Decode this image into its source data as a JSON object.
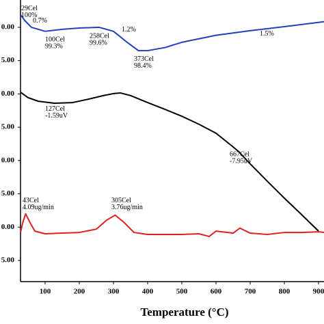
{
  "chart_data": {
    "type": "line",
    "x_label": "Temperature (°C)",
    "xlim": [
      28,
      916
    ],
    "xticks": [
      100,
      200,
      300,
      400,
      500,
      600,
      700,
      800,
      900
    ],
    "ylim": [
      -0.64,
      7.8
    ],
    "yticks": [
      {
        "value": 0,
        "label": "5.00"
      },
      {
        "value": 1,
        "label": "0.00"
      },
      {
        "value": 2,
        "label": "5.00"
      },
      {
        "value": 3,
        "label": "0.00"
      },
      {
        "value": 4,
        "label": "5.00"
      },
      {
        "value": 5,
        "label": "0.00"
      },
      {
        "value": 6,
        "label": "5.00"
      },
      {
        "value": 7,
        "label": "0.00"
      }
    ],
    "series": [
      {
        "color": "#1f3fbf",
        "x": [
          29,
          40,
          60,
          100,
          150,
          200,
          258,
          300,
          340,
          373,
          400,
          450,
          500,
          600,
          700,
          800,
          916
        ],
        "values": [
          7.37,
          7.21,
          7.0,
          6.88,
          6.94,
          6.98,
          7.0,
          6.88,
          6.55,
          6.3,
          6.3,
          6.39,
          6.55,
          6.76,
          6.9,
          7.02,
          7.17
        ]
      },
      {
        "color": "#000000",
        "x": [
          28,
          50,
          80,
          127,
          180,
          230,
          270,
          300,
          320,
          350,
          400,
          450,
          500,
          550,
          600,
          650,
          667,
          700,
          750,
          800,
          850,
          900
        ],
        "values": [
          5.05,
          4.89,
          4.78,
          4.72,
          4.74,
          4.85,
          4.95,
          5.01,
          5.03,
          4.95,
          4.74,
          4.54,
          4.33,
          4.09,
          3.82,
          3.41,
          3.26,
          2.9,
          2.38,
          1.87,
          1.38,
          0.88
        ]
      },
      {
        "color": "#e02020",
        "x": [
          28,
          35,
          43,
          55,
          70,
          100,
          150,
          200,
          250,
          280,
          305,
          330,
          360,
          400,
          450,
          500,
          550,
          580,
          600,
          650,
          670,
          700,
          750,
          800,
          850,
          900,
          916
        ],
        "values": [
          0.84,
          1.15,
          1.4,
          1.15,
          0.88,
          0.8,
          0.82,
          0.84,
          0.94,
          1.21,
          1.36,
          1.15,
          0.84,
          0.78,
          0.78,
          0.78,
          0.8,
          0.72,
          0.88,
          0.82,
          0.97,
          0.82,
          0.78,
          0.84,
          0.84,
          0.86,
          0.84
        ]
      }
    ],
    "annotations": [
      {
        "lines": [
          "29Cel",
          "100%"
        ],
        "x": 30,
        "y": 7.56
      },
      {
        "lines": [
          "0.7%"
        ],
        "x": 64,
        "y": 7.19
      },
      {
        "lines": [
          "100Cel",
          "99.3%"
        ],
        "x": 100,
        "y": 6.63
      },
      {
        "lines": [
          "258Cel",
          "99.6%"
        ],
        "x": 230,
        "y": 6.73
      },
      {
        "lines": [
          "1.2%"
        ],
        "x": 324,
        "y": 6.92
      },
      {
        "lines": [
          "373Cel",
          "98.4%"
        ],
        "x": 360,
        "y": 6.04
      },
      {
        "lines": [
          "1.5%"
        ],
        "x": 728,
        "y": 6.8
      },
      {
        "lines": [
          "127Cel",
          "-1.59uV"
        ],
        "x": 100,
        "y": 4.54
      },
      {
        "lines": [
          "667Cel",
          "-7.95uV"
        ],
        "x": 640,
        "y": 3.18
      },
      {
        "lines": [
          "43Cel",
          "4.09ug/min"
        ],
        "x": 34,
        "y": 1.79
      },
      {
        "lines": [
          "305Cel",
          "3.76ug/min"
        ],
        "x": 294,
        "y": 1.79
      }
    ]
  }
}
